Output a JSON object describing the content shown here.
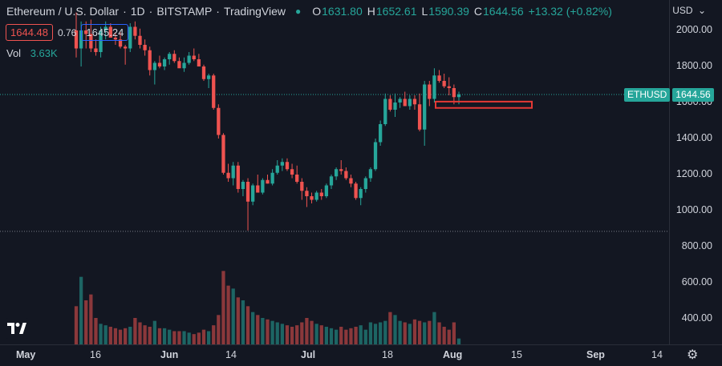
{
  "legend": {
    "symbol_title": "Ethereum / U.S. Dollar",
    "interval": "1D",
    "exchange": "BITSTAMP",
    "source": "TradingView",
    "open_label": "O",
    "open": "1631.80",
    "high_label": "H",
    "high": "1652.61",
    "low_label": "L",
    "low": "1590.39",
    "close_label": "C",
    "close": "1644.56",
    "change": "+13.32 (+0.82%)"
  },
  "trade": {
    "sell": "1644.48",
    "spread": "0.76",
    "buy": "1645.24"
  },
  "volume": {
    "label": "Vol",
    "value": "3.63K"
  },
  "currency": "USD",
  "price_badge": {
    "symbol": "ETHUSD",
    "price": "1644.56"
  },
  "y_axis": {
    "ticks": [
      "2000.00",
      "1800.00",
      "1600.00",
      "1400.00",
      "1200.00",
      "1000.00",
      "800.00",
      "600.00",
      "400.00"
    ]
  },
  "x_axis": {
    "ticks": [
      {
        "label": "May",
        "bold": true
      },
      {
        "label": "16",
        "bold": false
      },
      {
        "label": "Jun",
        "bold": true
      },
      {
        "label": "14",
        "bold": false
      },
      {
        "label": "Jul",
        "bold": true
      },
      {
        "label": "18",
        "bold": false
      },
      {
        "label": "Aug",
        "bold": true
      },
      {
        "label": "15",
        "bold": false
      },
      {
        "label": "Sep",
        "bold": true
      },
      {
        "label": "14",
        "bold": false
      }
    ]
  },
  "colors": {
    "up": "#26a69a",
    "down": "#ef5350",
    "background": "#131722",
    "zone": "#e53935"
  },
  "icons": {
    "logo": "tradingview-logo",
    "settings": "gear-icon",
    "currency_menu": "chevron-down-icon"
  },
  "chart_data": {
    "type": "candlestick",
    "ylim": [
      300,
      2100
    ],
    "price_line": 1644.56,
    "support_line": 885,
    "zone": {
      "from": 1570,
      "to": 1605
    },
    "candles": [
      [
        2000,
        2100,
        1850,
        1900,
        2.6
      ],
      [
        1900,
        2050,
        1800,
        2000,
        4.6
      ],
      [
        2000,
        2050,
        1900,
        1980,
        3.0
      ],
      [
        1980,
        2060,
        1880,
        1900,
        3.4
      ],
      [
        1900,
        1950,
        1860,
        1880,
        1.8
      ],
      [
        1880,
        2020,
        1850,
        2000,
        1.4
      ],
      [
        2000,
        2050,
        1950,
        2020,
        1.3
      ],
      [
        2020,
        2040,
        1970,
        1960,
        1.2
      ],
      [
        1960,
        1990,
        1920,
        1950,
        1.1
      ],
      [
        1950,
        1990,
        1900,
        1910,
        1.0
      ],
      [
        1910,
        1920,
        1810,
        1900,
        1.1
      ],
      [
        1900,
        2040,
        1880,
        2020,
        1.2
      ],
      [
        2020,
        2050,
        1950,
        1970,
        1.8
      ],
      [
        1970,
        2010,
        1900,
        1920,
        1.5
      ],
      [
        1920,
        1950,
        1860,
        1890,
        1.3
      ],
      [
        1890,
        1910,
        1750,
        1780,
        1.2
      ],
      [
        1780,
        1830,
        1700,
        1820,
        1.6
      ],
      [
        1820,
        1860,
        1790,
        1800,
        1.1
      ],
      [
        1800,
        1850,
        1780,
        1840,
        1.1
      ],
      [
        1840,
        1880,
        1810,
        1870,
        1.0
      ],
      [
        1870,
        1890,
        1820,
        1830,
        0.9
      ],
      [
        1830,
        1850,
        1800,
        1790,
        0.9
      ],
      [
        1790,
        1850,
        1770,
        1820,
        0.9
      ],
      [
        1820,
        1880,
        1810,
        1860,
        0.8
      ],
      [
        1860,
        1900,
        1830,
        1840,
        0.7
      ],
      [
        1840,
        1870,
        1810,
        1800,
        0.8
      ],
      [
        1800,
        1810,
        1720,
        1730,
        1.0
      ],
      [
        1730,
        1760,
        1680,
        1750,
        0.9
      ],
      [
        1750,
        1760,
        1560,
        1570,
        1.3
      ],
      [
        1570,
        1590,
        1400,
        1420,
        2.0
      ],
      [
        1420,
        1430,
        1200,
        1210,
        5.0
      ],
      [
        1210,
        1260,
        1160,
        1180,
        4.0
      ],
      [
        1180,
        1270,
        1140,
        1250,
        3.8
      ],
      [
        1250,
        1270,
        1100,
        1120,
        3.2
      ],
      [
        1120,
        1170,
        1080,
        1160,
        3.0
      ],
      [
        1160,
        1180,
        890,
        1050,
        2.6
      ],
      [
        1050,
        1150,
        1030,
        1140,
        2.2
      ],
      [
        1140,
        1200,
        1100,
        1100,
        2.0
      ],
      [
        1100,
        1180,
        1090,
        1170,
        1.8
      ],
      [
        1170,
        1200,
        1150,
        1150,
        1.7
      ],
      [
        1150,
        1230,
        1140,
        1210,
        1.6
      ],
      [
        1210,
        1280,
        1200,
        1250,
        1.5
      ],
      [
        1250,
        1290,
        1220,
        1270,
        1.4
      ],
      [
        1270,
        1290,
        1220,
        1230,
        1.3
      ],
      [
        1230,
        1260,
        1180,
        1200,
        1.2
      ],
      [
        1200,
        1250,
        1150,
        1160,
        1.3
      ],
      [
        1160,
        1180,
        1060,
        1110,
        1.5
      ],
      [
        1110,
        1130,
        1020,
        1080,
        1.8
      ],
      [
        1080,
        1100,
        1040,
        1060,
        1.6
      ],
      [
        1060,
        1110,
        1050,
        1100,
        1.4
      ],
      [
        1100,
        1120,
        1060,
        1080,
        1.3
      ],
      [
        1080,
        1150,
        1070,
        1140,
        1.2
      ],
      [
        1140,
        1200,
        1120,
        1190,
        1.1
      ],
      [
        1190,
        1240,
        1170,
        1230,
        1.0
      ],
      [
        1230,
        1280,
        1200,
        1220,
        1.2
      ],
      [
        1220,
        1240,
        1170,
        1180,
        1.0
      ],
      [
        1180,
        1200,
        1130,
        1150,
        1.1
      ],
      [
        1150,
        1160,
        1060,
        1070,
        1.2
      ],
      [
        1070,
        1130,
        1030,
        1120,
        1.3
      ],
      [
        1120,
        1190,
        1100,
        1180,
        1.0
      ],
      [
        1180,
        1240,
        1160,
        1230,
        1.5
      ],
      [
        1230,
        1400,
        1220,
        1380,
        1.4
      ],
      [
        1380,
        1500,
        1360,
        1480,
        1.5
      ],
      [
        1480,
        1650,
        1470,
        1620,
        1.6
      ],
      [
        1620,
        1640,
        1550,
        1560,
        2.2
      ],
      [
        1560,
        1650,
        1520,
        1600,
        2.0
      ],
      [
        1600,
        1630,
        1570,
        1620,
        1.6
      ],
      [
        1620,
        1660,
        1580,
        1580,
        1.5
      ],
      [
        1580,
        1640,
        1560,
        1620,
        1.4
      ],
      [
        1620,
        1640,
        1560,
        1590,
        1.7
      ],
      [
        1590,
        1650,
        1440,
        1450,
        1.6
      ],
      [
        1450,
        1720,
        1360,
        1700,
        1.5
      ],
      [
        1700,
        1720,
        1580,
        1620,
        1.6
      ],
      [
        1620,
        1790,
        1600,
        1750,
        2.2
      ],
      [
        1750,
        1780,
        1710,
        1720,
        1.5
      ],
      [
        1720,
        1760,
        1680,
        1690,
        1.2
      ],
      [
        1690,
        1740,
        1640,
        1680,
        1.0
      ],
      [
        1680,
        1700,
        1590,
        1630,
        1.5
      ],
      [
        1630,
        1660,
        1590,
        1645,
        0.4
      ]
    ],
    "volume_scale": [
      0,
      12
    ]
  }
}
